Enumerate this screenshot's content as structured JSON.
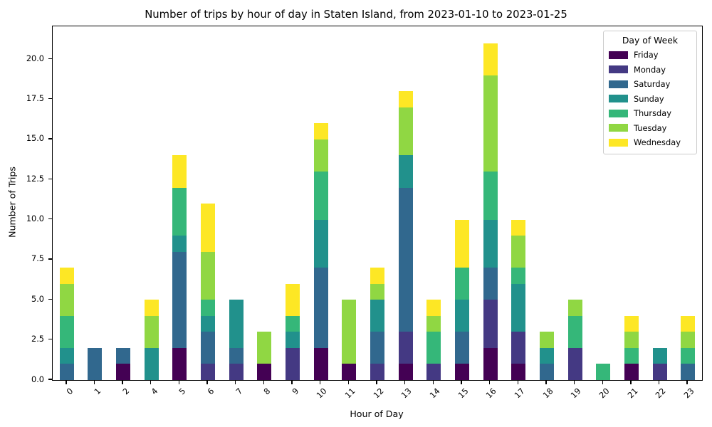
{
  "chart_data": {
    "type": "bar",
    "stacked": true,
    "title": "Number of trips by hour of day in Staten Island, from 2023-01-10 to 2023-01-25",
    "xlabel": "Hour of Day",
    "ylabel": "Number of Trips",
    "ylim": [
      0,
      22.05
    ],
    "yticks": [
      "0.0",
      "2.5",
      "5.0",
      "7.5",
      "10.0",
      "12.5",
      "15.0",
      "17.5",
      "20.0"
    ],
    "grid": false,
    "legend": {
      "title": "Day of Week",
      "position": "upper right"
    },
    "categories": [
      "0",
      "1",
      "2",
      "4",
      "5",
      "6",
      "7",
      "8",
      "9",
      "10",
      "11",
      "12",
      "13",
      "14",
      "15",
      "16",
      "17",
      "18",
      "19",
      "20",
      "21",
      "22",
      "23"
    ],
    "series": [
      {
        "name": "Friday",
        "color": "#440154",
        "values": [
          0,
          0,
          1,
          0,
          2,
          0,
          0,
          1,
          0,
          2,
          1,
          0,
          1,
          0,
          1,
          2,
          1,
          0,
          0,
          0,
          1,
          0,
          0
        ]
      },
      {
        "name": "Monday",
        "color": "#443983",
        "values": [
          0,
          0,
          0,
          0,
          0,
          1,
          1,
          0,
          2,
          0,
          0,
          1,
          2,
          1,
          0,
          3,
          2,
          0,
          2,
          0,
          0,
          1,
          0
        ]
      },
      {
        "name": "Saturday",
        "color": "#31688e",
        "values": [
          1,
          2,
          1,
          0,
          6,
          2,
          1,
          0,
          0,
          5,
          0,
          2,
          9,
          0,
          2,
          2,
          0,
          1,
          0,
          0,
          0,
          0,
          1
        ]
      },
      {
        "name": "Sunday",
        "color": "#21918c",
        "values": [
          1,
          0,
          0,
          2,
          1,
          1,
          3,
          0,
          1,
          3,
          0,
          2,
          2,
          0,
          2,
          3,
          3,
          1,
          0,
          0,
          0,
          1,
          0
        ]
      },
      {
        "name": "Thursday",
        "color": "#35b779",
        "values": [
          2,
          0,
          0,
          0,
          3,
          1,
          0,
          0,
          1,
          3,
          0,
          0,
          0,
          2,
          2,
          3,
          1,
          0,
          2,
          1,
          1,
          0,
          1
        ]
      },
      {
        "name": "Tuesday",
        "color": "#90d743",
        "values": [
          2,
          0,
          0,
          2,
          0,
          3,
          0,
          2,
          0,
          2,
          4,
          1,
          3,
          1,
          0,
          6,
          2,
          1,
          1,
          0,
          1,
          0,
          1
        ]
      },
      {
        "name": "Wednesday",
        "color": "#fde725",
        "values": [
          1,
          0,
          0,
          1,
          2,
          3,
          0,
          0,
          2,
          1,
          0,
          1,
          1,
          1,
          3,
          2,
          1,
          0,
          0,
          0,
          1,
          0,
          1
        ]
      }
    ],
    "totals_by_hour": [
      7,
      2,
      2,
      5,
      14,
      11,
      5,
      3,
      6,
      16,
      5,
      7,
      18,
      5,
      10,
      21,
      10,
      3,
      5,
      1,
      4,
      2,
      4
    ]
  }
}
